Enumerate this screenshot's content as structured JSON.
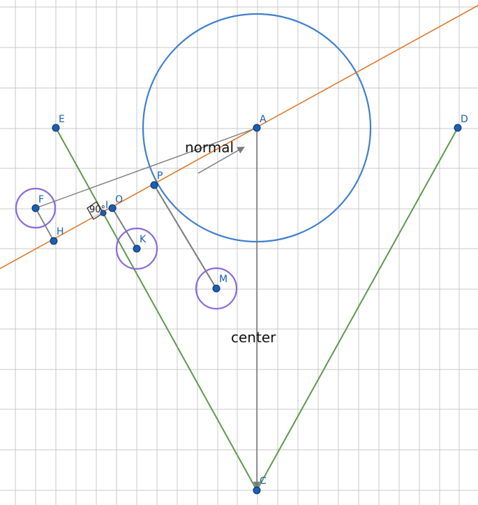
{
  "colors": {
    "grid": "#c8c8c8",
    "green": "#5b9a4a",
    "orange": "#e07a2e",
    "blue_circle": "#3f7fcf",
    "purple_circle": "#8a6ad8",
    "gray_segment": "#7a7a7a",
    "point_fill": "#1a5fb4",
    "point_stroke": "#0b2f6b",
    "label": "#1a5fb4"
  },
  "points": {
    "A": "A",
    "C": "C",
    "D": "D",
    "E": "E",
    "F": "F",
    "H": "H",
    "I": "I",
    "O": "O",
    "K": "K",
    "P": "P",
    "M": "M"
  },
  "labels": {
    "normal": "normal",
    "center": "center",
    "angle": "90°"
  }
}
